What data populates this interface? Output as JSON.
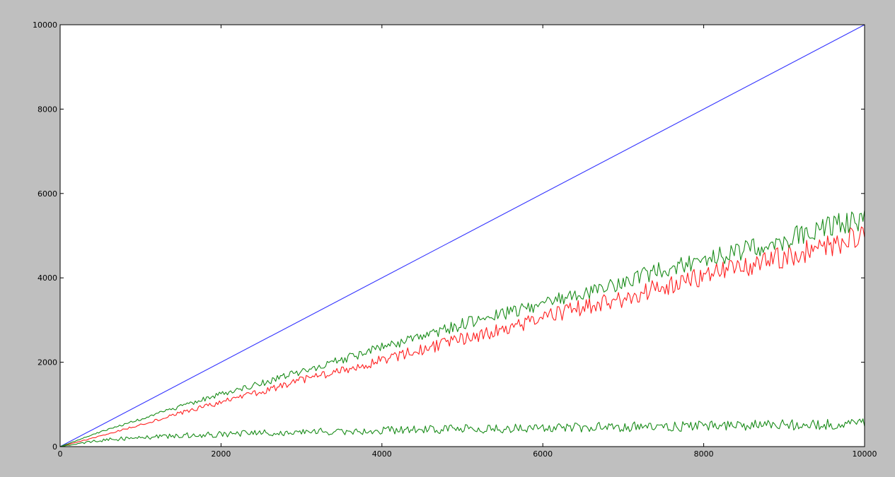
{
  "chart_data": {
    "type": "line",
    "title": "",
    "xlabel": "",
    "ylabel": "",
    "xlim": [
      0,
      10000
    ],
    "ylim": [
      0,
      10000
    ],
    "x_ticks": [
      0,
      2000,
      4000,
      6000,
      8000,
      10000
    ],
    "y_ticks": [
      0,
      2000,
      4000,
      6000,
      8000,
      10000
    ],
    "grid": false,
    "legend": "none",
    "background_color": "#bfbfbf",
    "plot_background_color": "#ffffff",
    "series": [
      {
        "color": "#3333ff",
        "style": "straight",
        "points": [
          [
            0,
            0
          ],
          [
            10000,
            10000
          ]
        ]
      },
      {
        "color": "#ff2020",
        "style": "noisy",
        "noise_amplitude": 0.06,
        "points": [
          [
            0,
            0
          ],
          [
            500,
            250
          ],
          [
            1000,
            520
          ],
          [
            1500,
            800
          ],
          [
            2000,
            1050
          ],
          [
            2500,
            1300
          ],
          [
            3000,
            1570
          ],
          [
            3500,
            1800
          ],
          [
            4000,
            2050
          ],
          [
            4500,
            2300
          ],
          [
            5000,
            2550
          ],
          [
            5500,
            2780
          ],
          [
            6000,
            3050
          ],
          [
            6500,
            3300
          ],
          [
            7000,
            3500
          ],
          [
            7500,
            3800
          ],
          [
            8000,
            4050
          ],
          [
            8500,
            4250
          ],
          [
            9000,
            4500
          ],
          [
            9500,
            4750
          ],
          [
            10000,
            5000
          ]
        ]
      },
      {
        "color": "#1a8c1a",
        "style": "noisy",
        "noise_amplitude": 0.05,
        "points": [
          [
            0,
            0
          ],
          [
            500,
            350
          ],
          [
            1000,
            650
          ],
          [
            1500,
            950
          ],
          [
            2000,
            1250
          ],
          [
            2500,
            1500
          ],
          [
            3000,
            1780
          ],
          [
            3500,
            2050
          ],
          [
            4000,
            2350
          ],
          [
            4500,
            2600
          ],
          [
            5000,
            2900
          ],
          [
            5500,
            3150
          ],
          [
            6000,
            3400
          ],
          [
            6500,
            3650
          ],
          [
            7000,
            3900
          ],
          [
            7500,
            4200
          ],
          [
            8000,
            4450
          ],
          [
            8500,
            4650
          ],
          [
            9000,
            4900
          ],
          [
            9500,
            5200
          ],
          [
            10000,
            5400
          ]
        ]
      },
      {
        "color": "#1a8c1a",
        "style": "noisy",
        "noise_amplitude": 0.25,
        "points": [
          [
            0,
            0
          ],
          [
            500,
            150
          ],
          [
            1000,
            220
          ],
          [
            1500,
            260
          ],
          [
            2000,
            290
          ],
          [
            2500,
            320
          ],
          [
            3000,
            340
          ],
          [
            3500,
            370
          ],
          [
            4000,
            390
          ],
          [
            4500,
            400
          ],
          [
            5000,
            420
          ],
          [
            5500,
            430
          ],
          [
            6000,
            450
          ],
          [
            6500,
            460
          ],
          [
            7000,
            470
          ],
          [
            7500,
            480
          ],
          [
            8000,
            490
          ],
          [
            8500,
            500
          ],
          [
            9000,
            510
          ],
          [
            9500,
            520
          ],
          [
            10000,
            530
          ]
        ]
      }
    ]
  }
}
